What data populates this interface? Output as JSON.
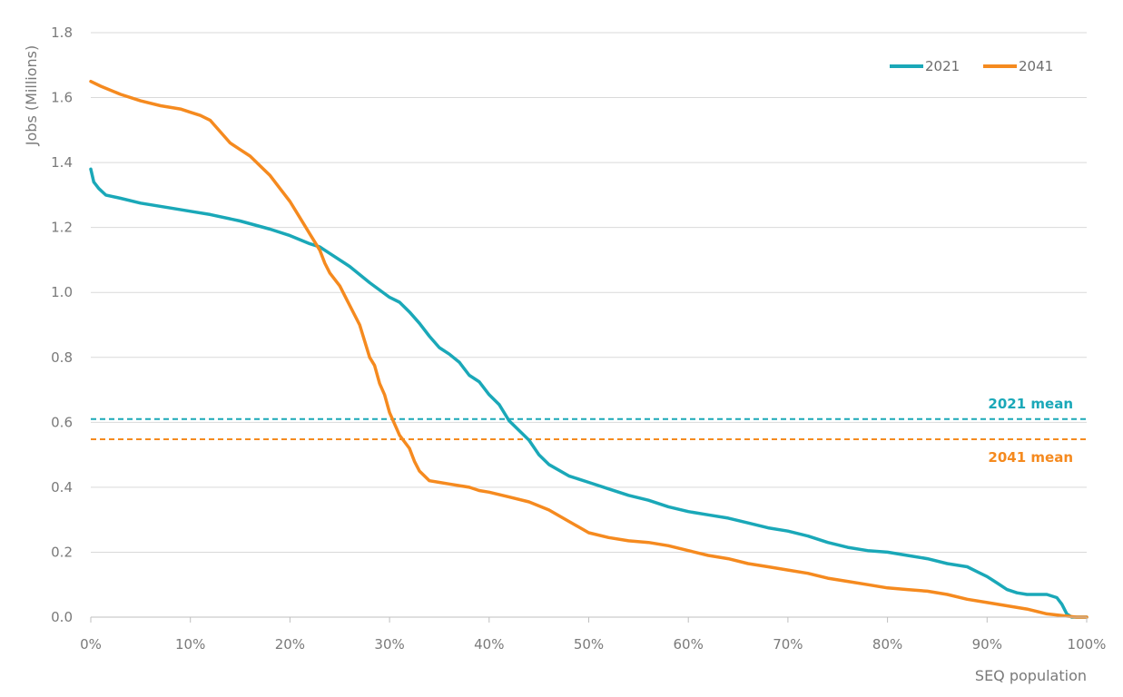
{
  "chart_data": {
    "type": "line",
    "title": "",
    "xlabel": "SEQ population",
    "ylabel": "Jobs (Millions)",
    "xlim": [
      0,
      100
    ],
    "ylim": [
      0,
      1.8
    ],
    "x_ticks": [
      "0%",
      "10%",
      "20%",
      "30%",
      "40%",
      "50%",
      "60%",
      "70%",
      "80%",
      "90%",
      "100%"
    ],
    "y_ticks": [
      "0.0",
      "0.2",
      "0.4",
      "0.6",
      "0.8",
      "1.0",
      "1.2",
      "1.4",
      "1.6",
      "1.8"
    ],
    "grid": "horizontal",
    "legend_position": "top-right",
    "colors": {
      "s2021": "#1aa8b8",
      "s2041": "#f58a1f",
      "grid": "#d9d9d9",
      "axis": "#bfbfbf"
    },
    "series": [
      {
        "name": "2021",
        "color": "#1aa8b8",
        "x": [
          0,
          0.3,
          0.8,
          1.5,
          3,
          5,
          8,
          10,
          12,
          15,
          18,
          20,
          22,
          23,
          24,
          26,
          28,
          30,
          31,
          32,
          33,
          34,
          35,
          36,
          37,
          38,
          39,
          40,
          41,
          42,
          43,
          44,
          45,
          46,
          48,
          50,
          52,
          54,
          56,
          58,
          60,
          62,
          64,
          66,
          68,
          70,
          72,
          74,
          76,
          78,
          80,
          82,
          84,
          86,
          88,
          89,
          90,
          91,
          92,
          93,
          94,
          95,
          96,
          97,
          97.5,
          98,
          98.5,
          100
        ],
        "y": [
          1.38,
          1.34,
          1.32,
          1.3,
          1.29,
          1.275,
          1.26,
          1.25,
          1.24,
          1.22,
          1.195,
          1.175,
          1.15,
          1.14,
          1.12,
          1.08,
          1.03,
          0.985,
          0.97,
          0.94,
          0.905,
          0.865,
          0.83,
          0.81,
          0.785,
          0.745,
          0.725,
          0.685,
          0.655,
          0.605,
          0.575,
          0.545,
          0.5,
          0.47,
          0.435,
          0.415,
          0.395,
          0.375,
          0.36,
          0.34,
          0.325,
          0.315,
          0.305,
          0.29,
          0.275,
          0.265,
          0.25,
          0.23,
          0.215,
          0.205,
          0.2,
          0.19,
          0.18,
          0.165,
          0.155,
          0.14,
          0.125,
          0.105,
          0.085,
          0.075,
          0.07,
          0.07,
          0.07,
          0.06,
          0.04,
          0.01,
          0.0,
          0.0
        ]
      },
      {
        "name": "2041",
        "color": "#f58a1f",
        "x": [
          0,
          1,
          3,
          5,
          7,
          9,
          10,
          11,
          12,
          13,
          14,
          15,
          16,
          17,
          18,
          19,
          20,
          21,
          22,
          23,
          23.5,
          24,
          25,
          26,
          27,
          28,
          28.5,
          29,
          29.5,
          30,
          30.5,
          31,
          32,
          32.5,
          33,
          34,
          35,
          36,
          37,
          38,
          39,
          40,
          42,
          44,
          46,
          48,
          50,
          52,
          54,
          56,
          58,
          60,
          62,
          64,
          66,
          68,
          70,
          72,
          74,
          76,
          78,
          80,
          82,
          84,
          86,
          88,
          90,
          92,
          94,
          96,
          98,
          99,
          100
        ],
        "y": [
          1.65,
          1.635,
          1.61,
          1.59,
          1.575,
          1.565,
          1.555,
          1.545,
          1.53,
          1.495,
          1.46,
          1.44,
          1.42,
          1.39,
          1.36,
          1.32,
          1.28,
          1.23,
          1.18,
          1.13,
          1.09,
          1.06,
          1.02,
          0.96,
          0.9,
          0.8,
          0.775,
          0.72,
          0.685,
          0.63,
          0.595,
          0.56,
          0.52,
          0.48,
          0.45,
          0.42,
          0.415,
          0.41,
          0.405,
          0.4,
          0.39,
          0.385,
          0.37,
          0.355,
          0.33,
          0.295,
          0.26,
          0.245,
          0.235,
          0.23,
          0.22,
          0.205,
          0.19,
          0.18,
          0.165,
          0.155,
          0.145,
          0.135,
          0.12,
          0.11,
          0.1,
          0.09,
          0.085,
          0.08,
          0.07,
          0.055,
          0.045,
          0.035,
          0.025,
          0.01,
          0.003,
          0.0,
          0.0
        ]
      }
    ],
    "reference_lines": [
      {
        "label": "2021 mean",
        "value": 0.61,
        "color": "#1aa8b8"
      },
      {
        "label": "2041 mean",
        "value": 0.548,
        "color": "#f58a1f"
      }
    ]
  }
}
